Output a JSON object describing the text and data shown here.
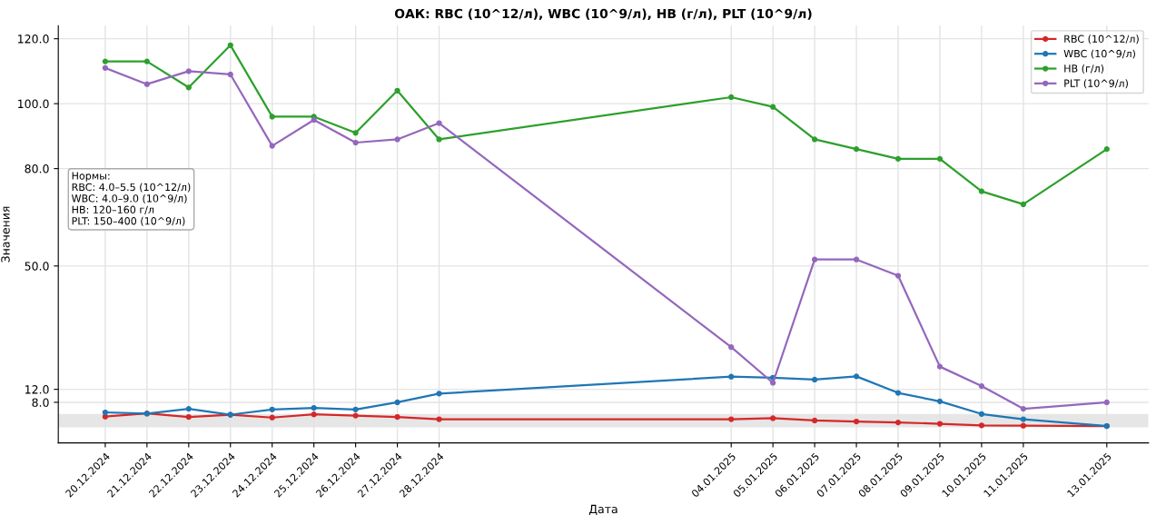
{
  "chart_data": {
    "type": "line",
    "title": "ОАК: RBC (10^12/л), WBC (10^9/л), HB (г/л), PLT (10^9/л)",
    "xlabel": "Дата",
    "ylabel": "Значения",
    "x": [
      "2024-12-20",
      "2024-12-21",
      "2024-12-22",
      "2024-12-23",
      "2024-12-24",
      "2024-12-25",
      "2024-12-26",
      "2024-12-27",
      "2024-12-28",
      "2025-01-04",
      "2025-01-05",
      "2025-01-06",
      "2025-01-07",
      "2025-01-08",
      "2025-01-09",
      "2025-01-10",
      "2025-01-11",
      "2025-01-13"
    ],
    "series": [
      {
        "name": "RBC (10^12/л)",
        "color": "#d62728",
        "values": [
          3.6,
          4.6,
          3.5,
          4.2,
          3.3,
          4.3,
          3.9,
          3.5,
          2.8,
          2.8,
          3.1,
          2.4,
          2.1,
          1.8,
          1.4,
          0.9,
          0.8,
          0.7
        ]
      },
      {
        "name": "WBC (10^9/л)",
        "color": "#1f77b4",
        "values": [
          4.9,
          4.5,
          6.0,
          4.2,
          5.8,
          6.3,
          5.8,
          8.0,
          10.7,
          15.9,
          15.6,
          15.0,
          16.0,
          10.9,
          8.3,
          4.4,
          2.8,
          0.7
        ]
      },
      {
        "name": "HB (г/л)",
        "color": "#2ca02c",
        "values": [
          113,
          113,
          105,
          118,
          96,
          96,
          91,
          104,
          89,
          102,
          99,
          89,
          86,
          83,
          83,
          73,
          69,
          86
        ]
      },
      {
        "name": "PLT (10^9/л)",
        "color": "#9467bd",
        "values": [
          111,
          106,
          110,
          109,
          87,
          95,
          88,
          89,
          94,
          25,
          14,
          52,
          52,
          47,
          19,
          13,
          6,
          8
        ]
      }
    ],
    "xlim": [
      "2024-12-18T21:00",
      "2025-01-14T00:00"
    ],
    "xticks": [
      {
        "value": "2024-12-20",
        "label": "20.12.2024"
      },
      {
        "value": "2024-12-21",
        "label": "21.12.2024"
      },
      {
        "value": "2024-12-22",
        "label": "22.12.2024"
      },
      {
        "value": "2024-12-23",
        "label": "23.12.2024"
      },
      {
        "value": "2024-12-24",
        "label": "24.12.2024"
      },
      {
        "value": "2024-12-25",
        "label": "25.12.2024"
      },
      {
        "value": "2024-12-26",
        "label": "26.12.2024"
      },
      {
        "value": "2024-12-27",
        "label": "27.12.2024"
      },
      {
        "value": "2024-12-28",
        "label": "28.12.2024"
      },
      {
        "value": "2025-01-04",
        "label": "04.01.2025"
      },
      {
        "value": "2025-01-05",
        "label": "05.01.2025"
      },
      {
        "value": "2025-01-06",
        "label": "06.01.2025"
      },
      {
        "value": "2025-01-07",
        "label": "07.01.2025"
      },
      {
        "value": "2025-01-08",
        "label": "08.01.2025"
      },
      {
        "value": "2025-01-09",
        "label": "09.01.2025"
      },
      {
        "value": "2025-01-10",
        "label": "10.01.2025"
      },
      {
        "value": "2025-01-11",
        "label": "11.01.2025"
      },
      {
        "value": "2025-01-13",
        "label": "13.01.2025"
      }
    ],
    "ylim": [
      -4.5,
      124
    ],
    "yticks": [
      {
        "value": 8,
        "label": "8.0"
      },
      {
        "value": 12,
        "label": "12.0"
      },
      {
        "value": 50,
        "label": "50.0"
      },
      {
        "value": 80,
        "label": "80.0"
      },
      {
        "value": 100,
        "label": "100.0"
      },
      {
        "value": 120,
        "label": "120.0"
      }
    ],
    "bands": [
      {
        "axis": "y",
        "from": 0.3,
        "to": 4.4,
        "color": "#e6e6e6"
      }
    ],
    "annotations": [
      "Нормы:\nRBC: 4.0–5.5 (10^12/л)\nWBC: 4.0–9.0 (10^9/л)\nHB: 120–160 г/л\nPLT: 150–400 (10^9/л)"
    ],
    "grid": true,
    "legend": "top right",
    "marker": "circle",
    "line_style": "solid"
  }
}
